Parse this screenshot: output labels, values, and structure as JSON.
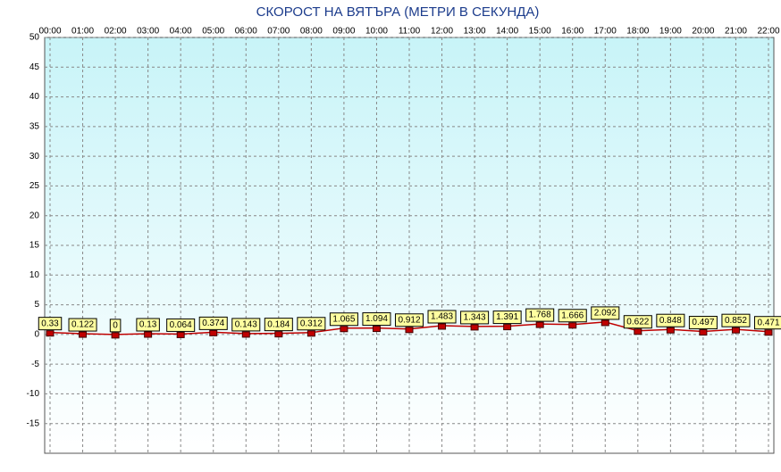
{
  "chart_data": {
    "type": "line",
    "title": "СКОРОСТ НА ВЯТЪРА (МЕТРИ В СЕКУНДА)",
    "categories": [
      "00:00",
      "01:00",
      "02:00",
      "03:00",
      "04:00",
      "05:00",
      "06:00",
      "07:00",
      "08:00",
      "09:00",
      "10:00",
      "11:00",
      "12:00",
      "13:00",
      "14:00",
      "15:00",
      "16:00",
      "17:00",
      "18:00",
      "19:00",
      "20:00",
      "21:00",
      "22:00"
    ],
    "series": [
      {
        "color": "#c00000",
        "values": [
          0.33,
          0.122,
          0,
          0.13,
          0.064,
          0.374,
          0.143,
          0.184,
          0.312,
          1.065,
          1.094,
          0.912,
          1.483,
          1.343,
          1.391,
          1.768,
          1.666,
          2.092,
          0.622,
          0.848,
          0.497,
          0.852,
          0.471
        ]
      }
    ],
    "ylim": [
      -20,
      50
    ],
    "yticks": [
      50,
      45,
      40,
      35,
      30,
      25,
      20,
      15,
      10,
      5,
      0,
      -5,
      -10,
      -15
    ],
    "grid": true
  }
}
